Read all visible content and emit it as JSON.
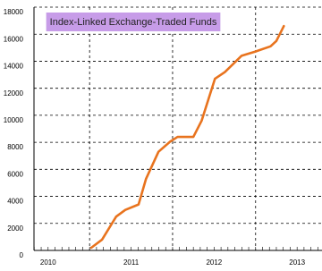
{
  "chart_data": {
    "type": "line",
    "title": "Index-Linked Exchange-Traded Funds",
    "x": [
      2011.02,
      2011.15,
      2011.32,
      2011.43,
      2011.59,
      2011.68,
      2011.83,
      2011.97,
      2012.06,
      2012.25,
      2012.35,
      2012.51,
      2012.63,
      2012.83,
      2012.99,
      2013.18,
      2013.25,
      2013.34
    ],
    "series": [
      {
        "name": "Index-Linked Exchange-Traded Funds",
        "color": "#e8731e",
        "values": [
          200,
          800,
          2500,
          3000,
          3400,
          5300,
          7300,
          8050,
          8400,
          8400,
          9600,
          12700,
          13200,
          14400,
          14700,
          15100,
          15500,
          16600
        ]
      }
    ],
    "xlim": [
      2010.33,
      2013.8
    ],
    "xticks": [
      2010,
      2011,
      2012,
      2013
    ],
    "ylim": [
      0,
      18000
    ],
    "yticks": [
      0,
      2000,
      4000,
      6000,
      8000,
      10000,
      12000,
      14000,
      16000,
      18000
    ],
    "grid": true,
    "title_background": "#c79ce8"
  }
}
